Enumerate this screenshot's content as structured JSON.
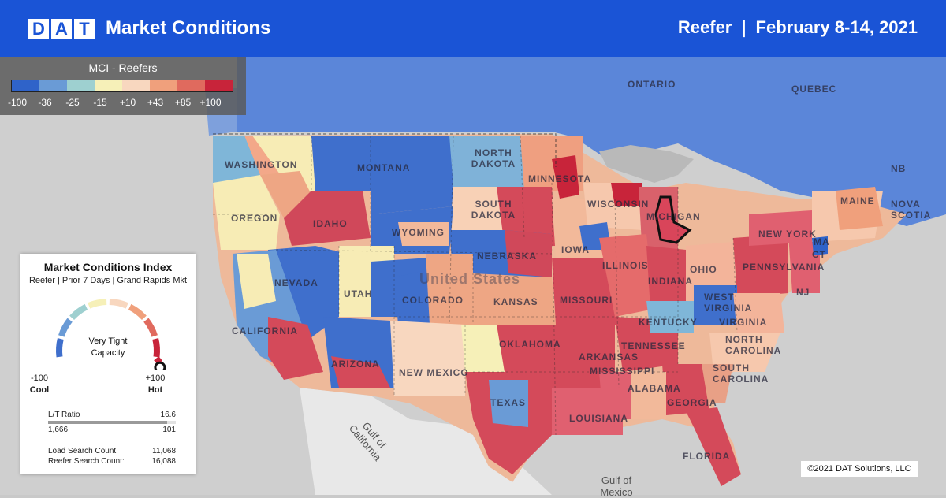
{
  "header": {
    "logo_letters": [
      "D",
      "A",
      "T"
    ],
    "title": "Market Conditions",
    "equipment": "Reefer",
    "separator": "|",
    "date_range": "February 8-14, 2021"
  },
  "legend": {
    "title": "MCI - Reefers",
    "colors": [
      "#2f63c9",
      "#6a9bd6",
      "#9ed0d0",
      "#f6f0b8",
      "#f8d7bf",
      "#f0a07c",
      "#e06a5e",
      "#c8243a"
    ],
    "ticks": [
      "-100",
      "-36",
      "-25",
      "-15",
      "+10",
      "+43",
      "+85",
      "+100"
    ]
  },
  "map_labels": {
    "states": [
      "WASHINGTON",
      "OREGON",
      "IDAHO",
      "MONTANA",
      "NORTH DAKOTA",
      "SOUTH DAKOTA",
      "MINNESOTA",
      "WYOMING",
      "NEBRASKA",
      "IOWA",
      "WISCONSIN",
      "MICHIGAN",
      "NEVADA",
      "UTAH",
      "COLORADO",
      "KANSAS",
      "MISSOURI",
      "ILLINOIS",
      "INDIANA",
      "OHIO",
      "CALIFORNIA",
      "ARIZONA",
      "NEW MEXICO",
      "OKLAHOMA",
      "ARKANSAS",
      "TENNESSEE",
      "KENTUCKY",
      "WEST VIRGINIA",
      "VIRGINIA",
      "NORTH CAROLINA",
      "SOUTH CAROLINA",
      "GEORGIA",
      "ALABAMA",
      "MISSISSIPPI",
      "LOUISIANA",
      "TEXAS",
      "FLORIDA",
      "PENNSYLVANIA",
      "NEW YORK",
      "MAINE",
      "ONTARIO",
      "QUEBEC",
      "NOVA SCOTIA",
      "NB",
      "NJ",
      "CT",
      "MA"
    ],
    "country": "United States",
    "seas": [
      "Gulf of California",
      "Gulf of Mexico"
    ]
  },
  "index_card": {
    "title": "Market Conditions Index",
    "subtitle": "Reefer | Prior 7 Days | Grand Rapids Mkt",
    "status_line1": "Very Tight",
    "status_line2": "Capacity",
    "min_value": "-100",
    "min_label": "Cool",
    "max_value": "+100",
    "max_label": "Hot",
    "lt_ratio_label": "L/T Ratio",
    "lt_ratio_value": "16.6",
    "lt_ratio_fraction": 0.93,
    "loads": "1,666",
    "trucks": "101",
    "load_search_label": "Load Search Count:",
    "load_search_value": "11,068",
    "reefer_search_label": "Reefer Search Count:",
    "reefer_search_value": "16,088",
    "gauge_level": 0.97
  },
  "copyright": "©2021 DAT Solutions, LLC"
}
